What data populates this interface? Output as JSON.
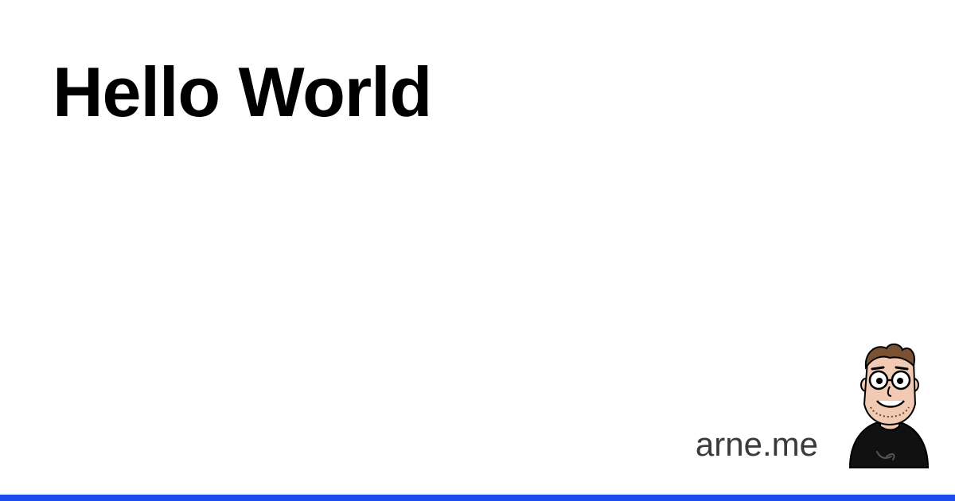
{
  "title": "Hello World",
  "site": "arne.me",
  "avatar": {
    "icon": "cartoon-avatar-icon"
  },
  "colors": {
    "background": "#ffffff",
    "title": "#000000",
    "site": "#3a3a3a",
    "accent_bar": "#1a4cf0"
  }
}
